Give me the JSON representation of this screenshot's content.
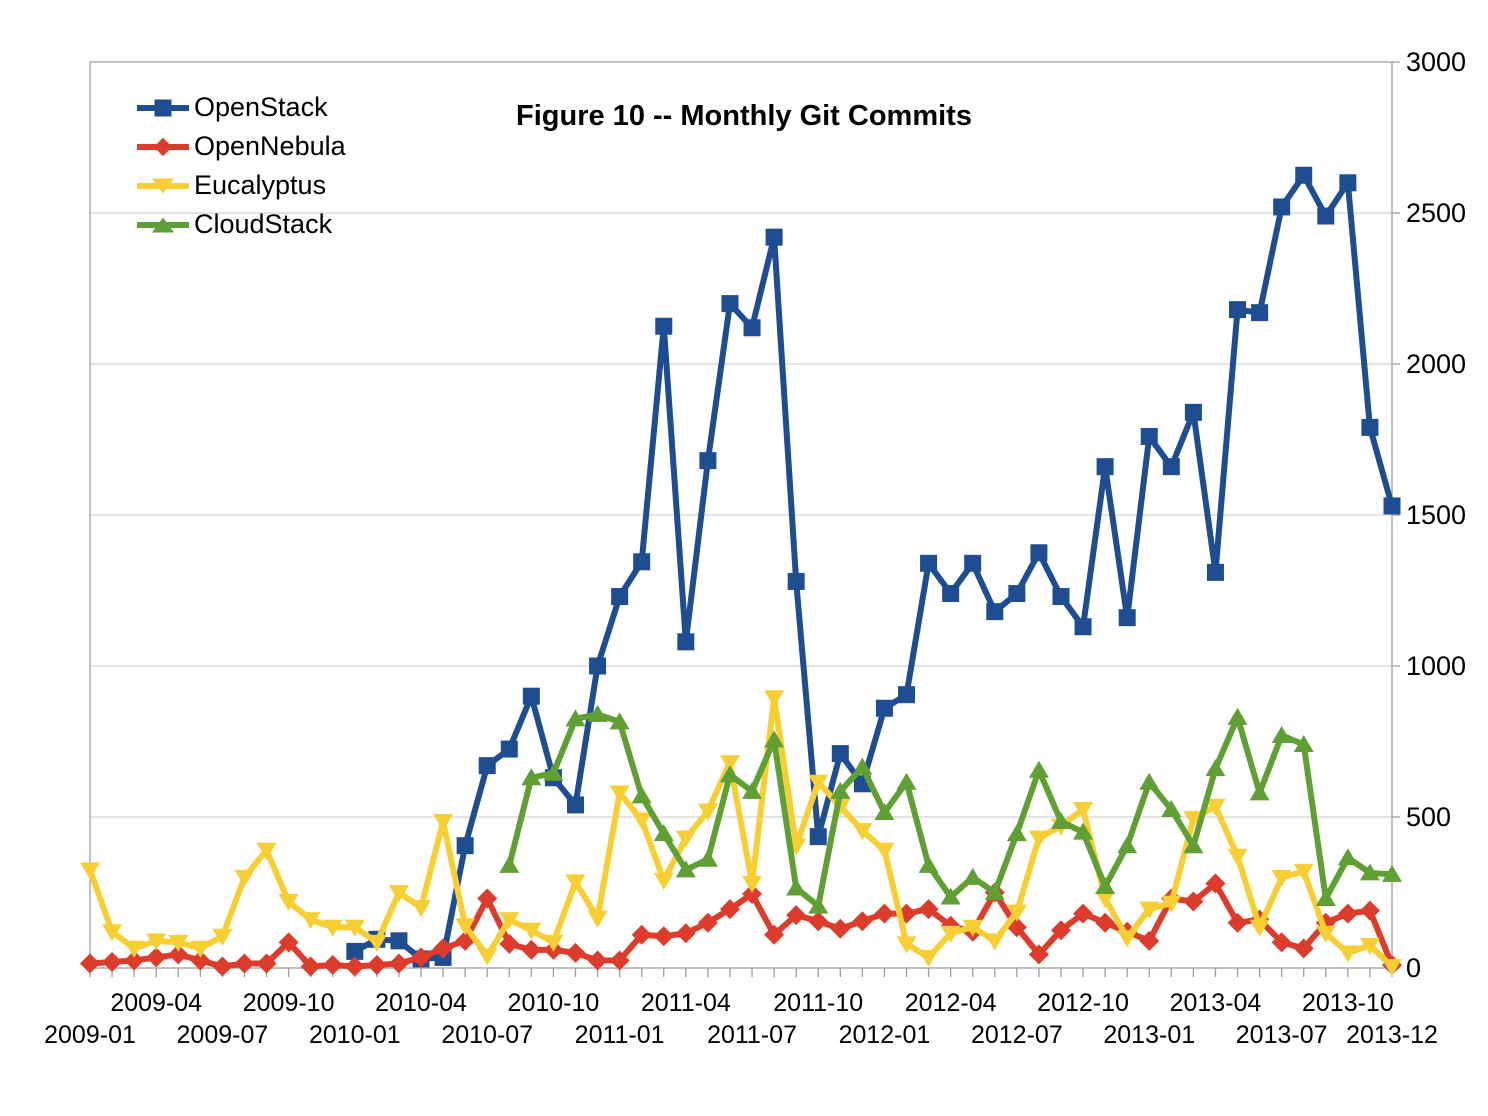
{
  "title": "Figure 10 -- Monthly Git Commits",
  "chart_data": {
    "type": "line",
    "title": "Figure 10 -- Monthly Git Commits",
    "xlabel": "",
    "ylabel": "",
    "ylim": [
      0,
      3000
    ],
    "y_ticks": [
      0,
      500,
      1000,
      1500,
      2000,
      2500,
      3000
    ],
    "y_axis_side": "right",
    "grid": true,
    "grid_color": "#c9c9c9",
    "border_color": "#ababab",
    "tick_color": "#9b9b9b",
    "legend_position": "top-left-inside",
    "categories": [
      "2009-01",
      "2009-02",
      "2009-03",
      "2009-04",
      "2009-05",
      "2009-06",
      "2009-07",
      "2009-08",
      "2009-09",
      "2009-10",
      "2009-11",
      "2009-12",
      "2010-01",
      "2010-02",
      "2010-03",
      "2010-04",
      "2010-05",
      "2010-06",
      "2010-07",
      "2010-08",
      "2010-09",
      "2010-10",
      "2010-11",
      "2010-12",
      "2011-01",
      "2011-02",
      "2011-03",
      "2011-04",
      "2011-05",
      "2011-06",
      "2011-07",
      "2011-08",
      "2011-09",
      "2011-10",
      "2011-11",
      "2011-12",
      "2012-01",
      "2012-02",
      "2012-03",
      "2012-04",
      "2012-05",
      "2012-06",
      "2012-07",
      "2012-08",
      "2012-09",
      "2012-10",
      "2012-11",
      "2012-12",
      "2013-01",
      "2013-02",
      "2013-03",
      "2013-04",
      "2013-05",
      "2013-06",
      "2013-07",
      "2013-08",
      "2013-09",
      "2013-10",
      "2013-11",
      "2013-12"
    ],
    "x_axis": {
      "top_row": [
        {
          "label": "2009-04",
          "index": 3
        },
        {
          "label": "2009-10",
          "index": 9
        },
        {
          "label": "2010-04",
          "index": 15
        },
        {
          "label": "2010-10",
          "index": 21
        },
        {
          "label": "2011-04",
          "index": 27
        },
        {
          "label": "2011-10",
          "index": 33
        },
        {
          "label": "2012-04",
          "index": 39
        },
        {
          "label": "2012-10",
          "index": 45
        },
        {
          "label": "2013-04",
          "index": 51
        },
        {
          "label": "2013-10",
          "index": 57
        }
      ],
      "bottom_row": [
        {
          "label": "2009-01",
          "index": 0
        },
        {
          "label": "2009-07",
          "index": 6
        },
        {
          "label": "2010-01",
          "index": 12
        },
        {
          "label": "2010-07",
          "index": 18
        },
        {
          "label": "2011-01",
          "index": 24
        },
        {
          "label": "2011-07",
          "index": 30
        },
        {
          "label": "2012-01",
          "index": 36
        },
        {
          "label": "2012-07",
          "index": 42
        },
        {
          "label": "2013-01",
          "index": 48
        },
        {
          "label": "2013-07",
          "index": 54
        },
        {
          "label": "2013-12",
          "index": 59
        }
      ]
    },
    "series": [
      {
        "name": "OpenStack",
        "color": "#1e4d92",
        "marker": "square",
        "values": [
          null,
          null,
          null,
          null,
          null,
          null,
          null,
          null,
          null,
          null,
          null,
          null,
          55,
          95,
          90,
          30,
          35,
          405,
          670,
          725,
          900,
          630,
          540,
          1000,
          1230,
          1345,
          2125,
          1080,
          1680,
          2200,
          2120,
          2420,
          1280,
          435,
          710,
          610,
          860,
          905,
          1340,
          1240,
          1340,
          1180,
          1240,
          1375,
          1230,
          1130,
          1660,
          1160,
          1760,
          1660,
          1840,
          1310,
          2180,
          2170,
          2520,
          2625,
          2490,
          2600,
          1790,
          1530
        ]
      },
      {
        "name": "OpenNebula",
        "color": "#dd3b2b",
        "marker": "diamond",
        "values": [
          15,
          20,
          25,
          35,
          45,
          25,
          5,
          15,
          15,
          85,
          5,
          10,
          5,
          10,
          15,
          35,
          65,
          90,
          230,
          80,
          60,
          60,
          50,
          25,
          25,
          110,
          105,
          115,
          150,
          195,
          245,
          110,
          175,
          155,
          130,
          155,
          180,
          180,
          195,
          140,
          120,
          250,
          135,
          45,
          125,
          180,
          150,
          120,
          90,
          230,
          220,
          280,
          150,
          160,
          85,
          65,
          150,
          180,
          190,
          10
        ]
      },
      {
        "name": "Eucalyptus",
        "color": "#f8cf32",
        "marker": "triangle-down",
        "values": [
          325,
          120,
          65,
          90,
          85,
          65,
          105,
          300,
          390,
          220,
          160,
          135,
          135,
          85,
          250,
          200,
          485,
          140,
          40,
          160,
          125,
          85,
          285,
          165,
          580,
          490,
          290,
          430,
          520,
          680,
          280,
          895,
          405,
          615,
          535,
          455,
          390,
          80,
          35,
          115,
          135,
          90,
          185,
          430,
          470,
          525,
          230,
          100,
          195,
          215,
          495,
          535,
          370,
          135,
          300,
          320,
          115,
          50,
          75,
          5
        ]
      },
      {
        "name": "CloudStack",
        "color": "#5f9f33",
        "marker": "triangle-up",
        "values": [
          null,
          null,
          null,
          null,
          null,
          null,
          null,
          null,
          null,
          null,
          null,
          null,
          null,
          null,
          null,
          null,
          null,
          null,
          null,
          340,
          630,
          645,
          825,
          840,
          815,
          570,
          445,
          325,
          360,
          640,
          585,
          755,
          265,
          205,
          585,
          665,
          515,
          615,
          340,
          235,
          300,
          250,
          445,
          655,
          485,
          450,
          270,
          405,
          615,
          525,
          405,
          660,
          830,
          580,
          770,
          740,
          230,
          365,
          315,
          310
        ]
      }
    ]
  }
}
